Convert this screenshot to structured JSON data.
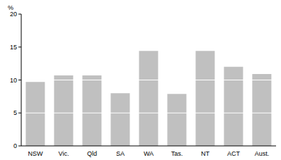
{
  "chart_data": {
    "type": "bar",
    "y_label": "%",
    "categories": [
      "NSW",
      "Vic.",
      "Qld",
      "SA",
      "WA",
      "Tas.",
      "NT",
      "ACT",
      "Aust."
    ],
    "values": [
      9.7,
      10.7,
      10.7,
      8.0,
      14.4,
      7.9,
      14.4,
      12.0,
      10.9
    ],
    "color": "#c0c0c0",
    "ylim": [
      0,
      20
    ],
    "yticks": [
      0,
      5,
      10,
      15,
      20
    ],
    "grid": true
  }
}
